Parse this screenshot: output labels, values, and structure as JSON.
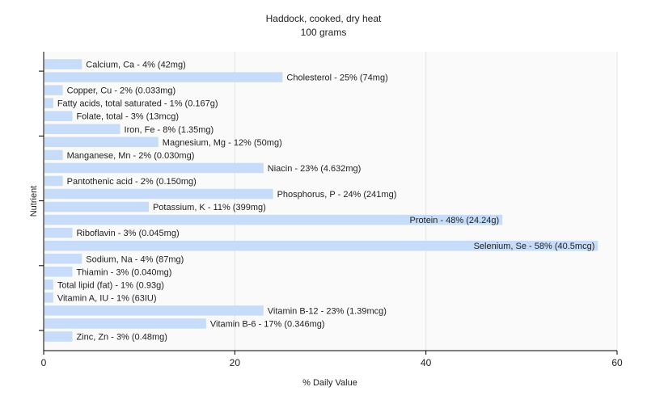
{
  "chart_data": {
    "type": "bar",
    "orientation": "horizontal",
    "title": "Haddock, cooked, dry heat",
    "subtitle": "100 grams",
    "xlabel": "% Daily Value",
    "ylabel": "Nutrient",
    "xlim": [
      0,
      60
    ],
    "xticks": [
      0,
      20,
      40,
      60
    ],
    "grid": true,
    "bar_color": "#c6dcf8",
    "categories": [
      "Calcium, Ca",
      "Cholesterol",
      "Copper, Cu",
      "Fatty acids, total saturated",
      "Folate, total",
      "Iron, Fe",
      "Magnesium, Mg",
      "Manganese, Mn",
      "Niacin",
      "Pantothenic acid",
      "Phosphorus, P",
      "Potassium, K",
      "Protein",
      "Riboflavin",
      "Selenium, Se",
      "Sodium, Na",
      "Thiamin",
      "Total lipid (fat)",
      "Vitamin A, IU",
      "Vitamin B-12",
      "Vitamin B-6",
      "Zinc, Zn"
    ],
    "values": [
      4,
      25,
      2,
      1,
      3,
      8,
      12,
      2,
      23,
      2,
      24,
      11,
      48,
      3,
      58,
      4,
      3,
      1,
      1,
      23,
      17,
      3
    ],
    "labels": [
      "Calcium, Ca - 4% (42mg)",
      "Cholesterol - 25% (74mg)",
      "Copper, Cu - 2% (0.033mg)",
      "Fatty acids, total saturated - 1% (0.167g)",
      "Folate, total - 3% (13mcg)",
      "Iron, Fe - 8% (1.35mg)",
      "Magnesium, Mg - 12% (50mg)",
      "Manganese, Mn - 2% (0.030mg)",
      "Niacin - 23% (4.632mg)",
      "Pantothenic acid - 2% (0.150mg)",
      "Phosphorus, P - 24% (241mg)",
      "Potassium, K - 11% (399mg)",
      "Protein - 48% (24.24g)",
      "Riboflavin - 3% (0.045mg)",
      "Selenium, Se - 58% (40.5mcg)",
      "Sodium, Na - 4% (87mg)",
      "Thiamin - 3% (0.040mg)",
      "Total lipid (fat) - 1% (0.93g)",
      "Vitamin A, IU - 1% (63IU)",
      "Vitamin B-12 - 23% (1.39mcg)",
      "Vitamin B-6 - 17% (0.346mg)",
      "Zinc, Zn - 3% (0.48mg)"
    ]
  }
}
